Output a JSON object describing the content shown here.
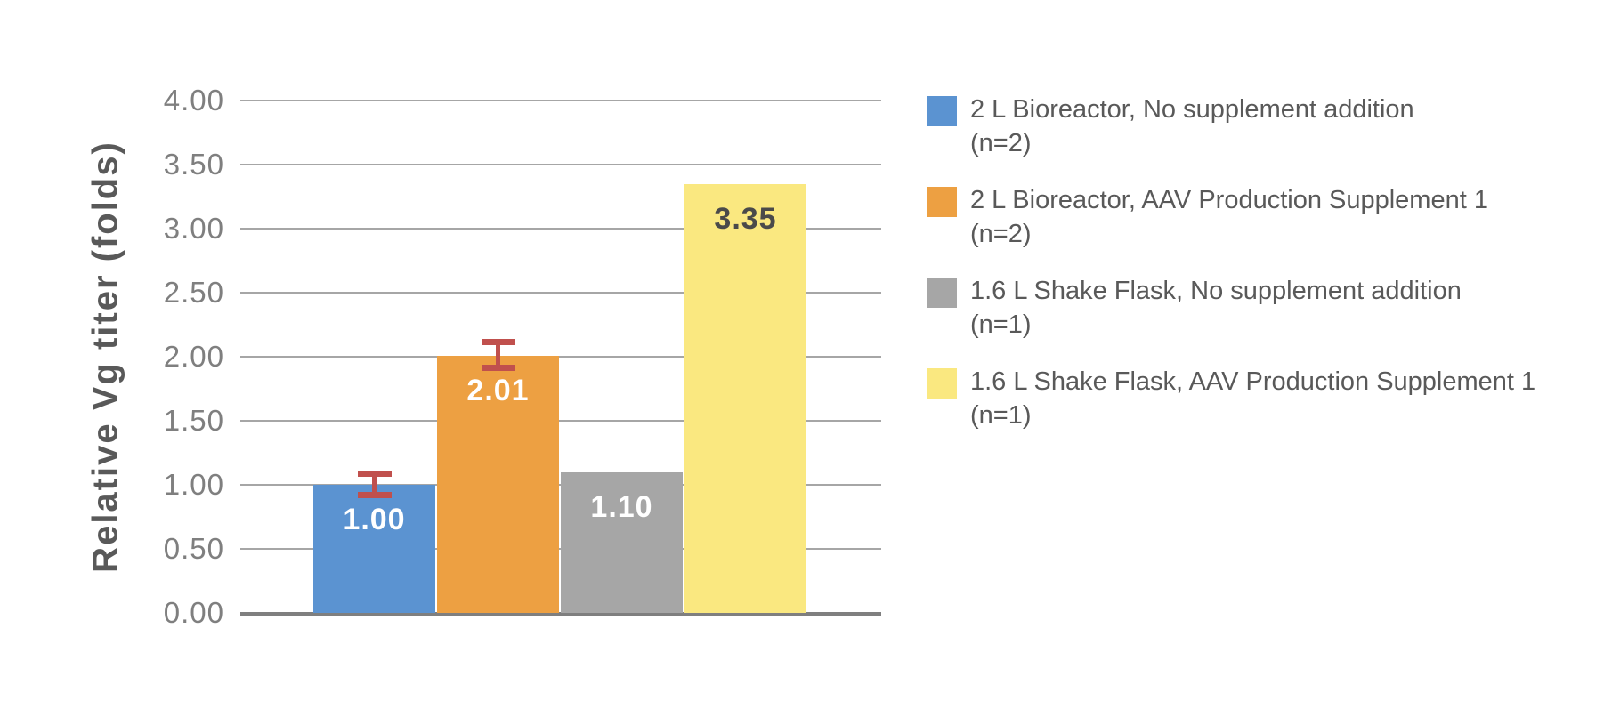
{
  "page": {
    "background": "#FFFFFF"
  },
  "chart_data": {
    "type": "bar",
    "title": "",
    "xlabel": "",
    "ylabel": "Relative Vg titer (folds)",
    "ylim": [
      0.0,
      4.0
    ],
    "ytick_step": 0.5,
    "ytick_labels": [
      "0.00",
      "0.50",
      "1.00",
      "1.50",
      "2.00",
      "2.50",
      "3.00",
      "3.50",
      "4.00"
    ],
    "grid": true,
    "legend_position": "right-top",
    "series": [
      {
        "name": "2 L Bioreactor, No supplement addition (n=2)",
        "legend_line1": "2 L Bioreactor, No supplement addition",
        "legend_line2": "(n=2)",
        "value": 1.0,
        "data_label": "1.00",
        "error_bar": 0.08,
        "color": "#5B93D1",
        "label_color": "#FFFFFF"
      },
      {
        "name": "2 L Bioreactor, AAV Production Supplement 1 (n=2)",
        "legend_line1": "2 L Bioreactor, AAV Production Supplement 1",
        "legend_line2": "(n=2)",
        "value": 2.01,
        "data_label": "2.01",
        "error_bar": 0.1,
        "color": "#EDA042",
        "label_color": "#FFFFFF"
      },
      {
        "name": "1.6 L Shake Flask, No supplement addition (n=1)",
        "legend_line1": "1.6 L Shake Flask, No supplement addition",
        "legend_line2": "(n=1)",
        "value": 1.1,
        "data_label": "1.10",
        "error_bar": null,
        "color": "#A6A6A6",
        "label_color": "#FFFFFF"
      },
      {
        "name": "1.6 L Shake Flask, AAV Production Supplement 1 (n=1)",
        "legend_line1": "1.6 L Shake Flask, AAV Production Supplement 1",
        "legend_line2": "(n=1)",
        "value": 3.35,
        "data_label": "3.35",
        "error_bar": null,
        "color": "#FAE880",
        "label_color": "#4A4A4A"
      }
    ],
    "style": {
      "error_bar_color": "#C0504D",
      "gridline_color": "#A6A6A6",
      "axis_line_color": "#7F7F7F",
      "tick_label_color": "#7F7F7F",
      "axis_title_color": "#595959",
      "legend_text_color": "#595959"
    }
  }
}
